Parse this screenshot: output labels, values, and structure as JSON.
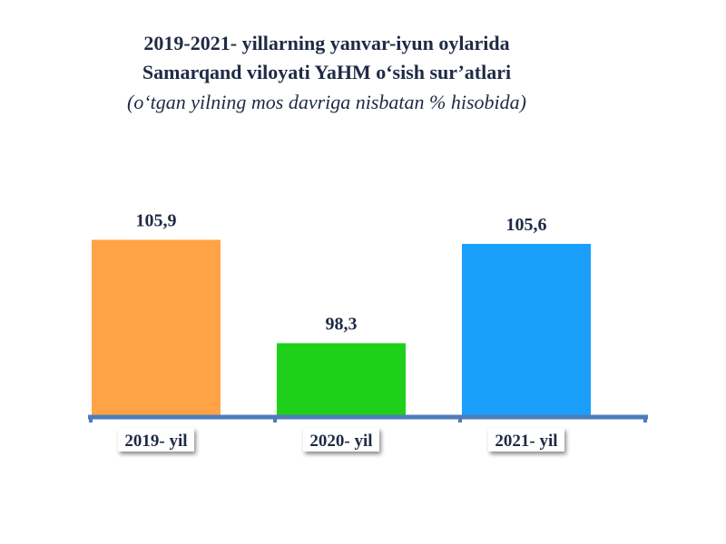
{
  "title_lines": [
    "2019-2021- yillarning yanvar-iyun oylarida",
    "Samarqand viloyati YaHM o‘sish sur’atlari"
  ],
  "subtitle": "(o‘tgan yilning mos davriga nisbatan % hisobida)",
  "colors": {
    "title": "#1f2a44",
    "label": "#1f2a44",
    "axis": "#4f7cba"
  },
  "chart_data": {
    "type": "bar",
    "categories": [
      "2019- yil",
      "2020- yil",
      "2021- yil"
    ],
    "values": [
      105.9,
      98.3,
      105.6
    ],
    "value_labels": [
      "105,9",
      "98,3",
      "105,6"
    ],
    "bar_colors": [
      "#ffa346",
      "#1ed01a",
      "#1a9ffc"
    ],
    "ylim": [
      93,
      111
    ],
    "grid": false,
    "legend": "none"
  }
}
